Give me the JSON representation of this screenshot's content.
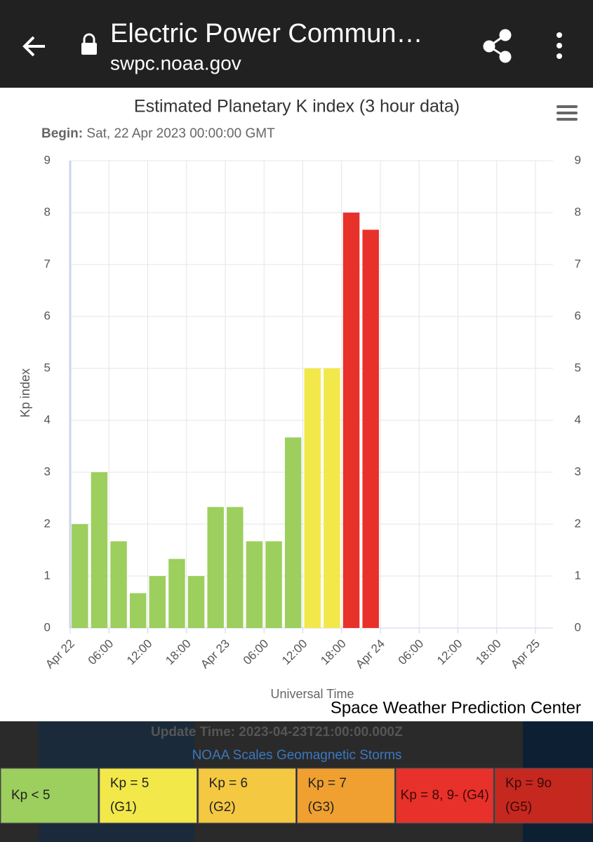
{
  "browser": {
    "title": "Electric Power Commun…",
    "url": "swpc.noaa.gov"
  },
  "chart_data": {
    "type": "bar",
    "title": "Estimated Planetary K index (3 hour data)",
    "subtitle_label": "Begin:",
    "subtitle": "Sat, 22 Apr 2023 00:00:00 GMT",
    "y_label": "Kp index",
    "x_label": "Universal Time",
    "credit": "Space Weather Prediction Center",
    "xlim": [
      0,
      72
    ],
    "xticks": [
      {
        "value": 0,
        "label": "Apr 22"
      },
      {
        "value": 6,
        "label": "06:00"
      },
      {
        "value": 12,
        "label": "12:00"
      },
      {
        "value": 18,
        "label": "18:00"
      },
      {
        "value": 24,
        "label": "Apr 23"
      },
      {
        "value": 30,
        "label": "06:00"
      },
      {
        "value": 36,
        "label": "12:00"
      },
      {
        "value": 42,
        "label": "18:00"
      },
      {
        "value": 48,
        "label": "Apr 24"
      },
      {
        "value": 54,
        "label": "06:00"
      },
      {
        "value": 60,
        "label": "12:00"
      },
      {
        "value": 66,
        "label": "18:00"
      },
      {
        "value": 72,
        "label": "Apr 25"
      }
    ],
    "ylim": [
      0,
      9
    ],
    "yticks": [
      0,
      1,
      2,
      3,
      4,
      5,
      6,
      7,
      8,
      9
    ],
    "grid": true,
    "series": [
      {
        "x": [
          1.5,
          4.5,
          7.5,
          10.5,
          13.5,
          16.5,
          19.5,
          22.5,
          25.5,
          28.5,
          31.5,
          34.5,
          37.5,
          40.5,
          43.5,
          46.5
        ],
        "values": [
          2,
          3,
          1.67,
          0.67,
          1,
          1.33,
          1,
          2.33,
          2.33,
          1.67,
          1.67,
          3.67,
          5,
          5,
          8,
          7.67
        ],
        "colors": [
          "#9ccf5e",
          "#9ccf5e",
          "#9ccf5e",
          "#9ccf5e",
          "#9ccf5e",
          "#9ccf5e",
          "#9ccf5e",
          "#9ccf5e",
          "#9ccf5e",
          "#9ccf5e",
          "#9ccf5e",
          "#9ccf5e",
          "#f2e84a",
          "#f2e84a",
          "#e8312a",
          "#e8312a"
        ]
      }
    ]
  },
  "footer": {
    "update": "Update Time: 2023-04-23T21:00:00.000Z",
    "link": "NOAA Scales Geomagnetic Storms",
    "scales": [
      {
        "line1": "Kp < 5",
        "line2": null,
        "color": "#9ccf5e"
      },
      {
        "line1": "Kp = 5",
        "line2": "(G1)",
        "color": "#f2e84a"
      },
      {
        "line1": "Kp = 6",
        "line2": "(G2)",
        "color": "#f5c842"
      },
      {
        "line1": "Kp = 7",
        "line2": "(G3)",
        "color": "#f0a030"
      },
      {
        "line1": "Kp = 8, 9- (G4)",
        "line2": null,
        "color": "#e8312a"
      },
      {
        "line1": "Kp = 9o",
        "line2": "(G5)",
        "color": "#c4281f"
      }
    ]
  }
}
